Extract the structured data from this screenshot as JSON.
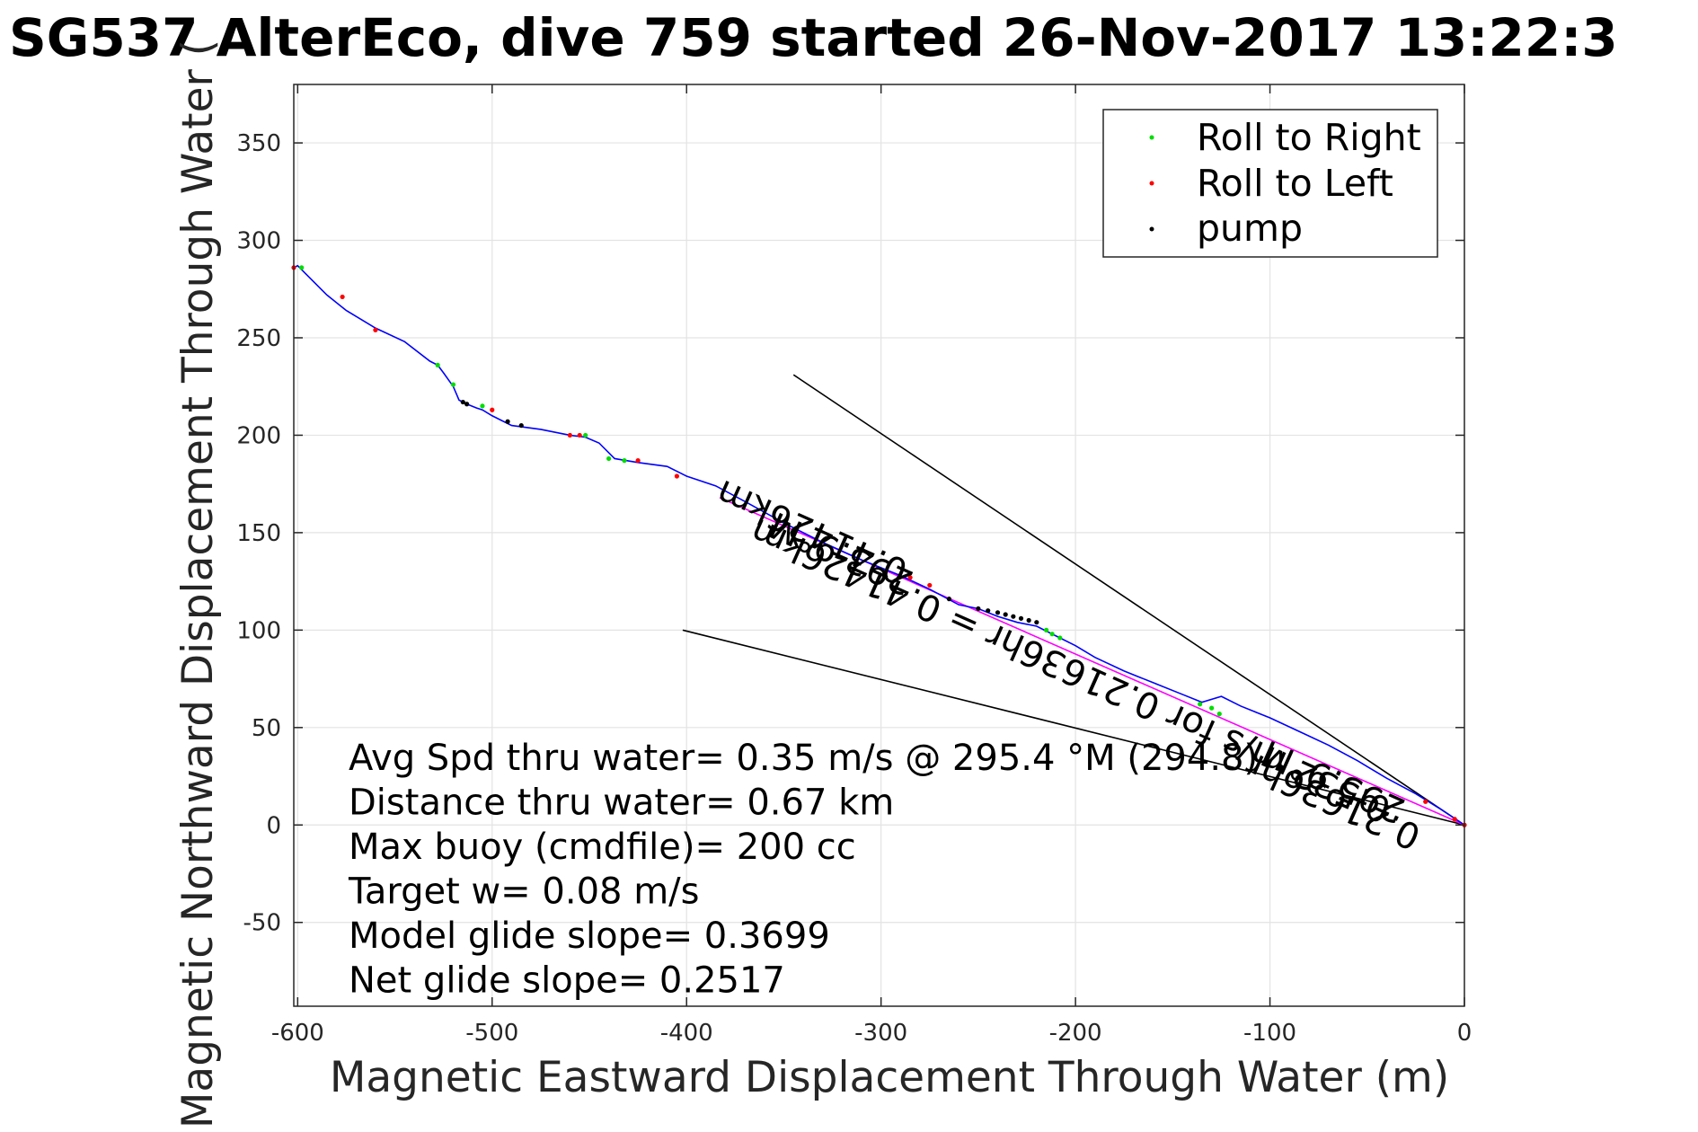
{
  "chart_data": {
    "type": "scatter",
    "title": "SG537 AlterEco, dive 759 started 26-Nov-2017 13:22:3",
    "xlabel": "Magnetic Eastward Displacement Through Water (m)",
    "ylabel": "Magnetic Northward Displacement Through Water (",
    "xlim": [
      -602,
      0
    ],
    "ylim": [
      -93,
      380
    ],
    "xticks": [
      -600,
      -500,
      -400,
      -300,
      -200,
      -100,
      0
    ],
    "yticks": [
      -50,
      0,
      50,
      100,
      150,
      200,
      250,
      300,
      350
    ],
    "grid": true,
    "legend_position": "top-right",
    "legend": [
      {
        "label": "Roll to Right",
        "color": "#00dd00"
      },
      {
        "label": "Roll to Left",
        "color": "#ff0000"
      },
      {
        "label": "pump",
        "color": "#000000"
      }
    ],
    "track": {
      "color": "#0000ff",
      "x": [
        0,
        -12,
        -25,
        -40,
        -55,
        -70,
        -85,
        -100,
        -115,
        -125,
        -135,
        -145,
        -160,
        -175,
        -190,
        -200,
        -210,
        -220,
        -230,
        -240,
        -250,
        -260,
        -275,
        -290,
        -310,
        -330,
        -350,
        -370,
        -385,
        -400,
        -410,
        -425,
        -437,
        -445,
        -452,
        -460,
        -475,
        -490,
        -500,
        -505,
        -508,
        -513,
        -515,
        -517,
        -520,
        -525,
        -528,
        -532,
        -545,
        -560,
        -575,
        -585,
        -596,
        -600,
        -602
      ],
      "y": [
        0,
        8,
        16,
        24,
        33,
        41,
        48,
        55,
        61,
        66,
        63,
        67,
        73,
        79,
        86,
        92,
        97,
        102,
        104,
        107,
        111,
        113,
        121,
        128,
        136,
        145,
        155,
        166,
        174,
        179,
        184,
        186,
        188,
        196,
        199,
        200,
        203,
        205,
        210,
        213,
        214,
        216,
        217,
        218,
        225,
        232,
        236,
        238,
        248,
        255,
        264,
        272,
        283,
        287,
        286
      ]
    },
    "roll_right": {
      "x": [
        -598,
        -528,
        -520,
        -505,
        -440,
        -432,
        -452,
        -215,
        -212,
        -208,
        -136,
        -130,
        -126
      ],
      "y": [
        286,
        236,
        226,
        215,
        188,
        187,
        200,
        100,
        98,
        96,
        62,
        60,
        57
      ]
    },
    "roll_left": {
      "x": [
        -602,
        -577,
        -560,
        -500,
        -460,
        -455,
        -425,
        -405,
        -285,
        -275,
        -20,
        -5,
        0
      ],
      "y": [
        286,
        271,
        254,
        213,
        200,
        200,
        187,
        179,
        127,
        123,
        12,
        3,
        0
      ]
    },
    "pump": {
      "x": [
        -515,
        -513,
        -492,
        -485,
        -265,
        -250,
        -245,
        -240,
        -236,
        -232,
        -228,
        -224,
        -220
      ],
      "y": [
        217,
        216,
        207,
        205,
        116,
        111,
        110,
        109,
        108,
        107,
        106,
        105,
        104
      ]
    },
    "vectors": [
      {
        "x": [
          0,
          -345
        ],
        "y": [
          0,
          231
        ],
        "color": "#000000"
      },
      {
        "x": [
          0,
          -402
        ],
        "y": [
          0,
          100
        ],
        "color": "#000000"
      },
      {
        "x": [
          0,
          -383
        ],
        "y": [
          0,
          168
        ],
        "color": "#ff00ff"
      }
    ],
    "vector_labels": [
      {
        "text": "293.9°M",
        "x": -318,
        "y": 145,
        "rotation": 204
      },
      {
        "text": "0.41426km",
        "x": -333,
        "y": 156,
        "rotation": 204
      },
      {
        "text": "0.532 m/s for 0.21636hr = 0.41426km",
        "x": -200,
        "y": 85,
        "rotation": 204
      },
      {
        "text": "295.9°M",
        "x": -65,
        "y": 28,
        "rotation": 204
      },
      {
        "text": "0.21636hr",
        "x": -65,
        "y": 18,
        "rotation": 204
      }
    ],
    "annotations": [
      "Avg Spd thru water=  0.35 m/s @ 295.4 °M (294.8)",
      "Distance thru water=  0.67 km",
      "Max buoy (cmdfile)= 200 cc",
      "Target w= 0.08 m/s",
      "Model glide slope= 0.3699",
      "Net glide slope= 0.2517"
    ]
  }
}
